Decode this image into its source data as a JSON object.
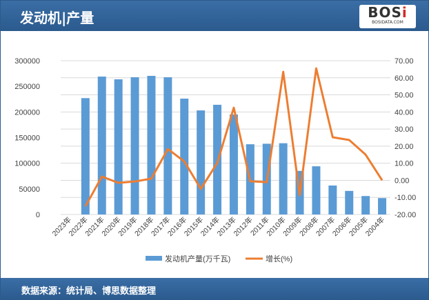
{
  "header": {
    "title": "发动机|产量",
    "logo_text": "BOSi",
    "logo_sub": "BOSIDATA.COM"
  },
  "footer": {
    "source": "数据来源：统计局、博思数据整理"
  },
  "chart_data": {
    "type": "bar+line",
    "categories": [
      "2023年",
      "2022年",
      "2021年",
      "2020年",
      "2019年",
      "2018年",
      "2017年",
      "2016年",
      "2015年",
      "2014年",
      "2013年",
      "2012年",
      "2011年",
      "2010年",
      "2009年",
      "2008年",
      "2007年",
      "2006年",
      "2005年",
      "2004年"
    ],
    "series": [
      {
        "name": "发动机产量(万千瓦)",
        "type": "bar",
        "axis": "left",
        "color": "#5b9bd5",
        "values": [
          null,
          227000,
          269000,
          263700,
          267700,
          270400,
          267700,
          226000,
          203000,
          214000,
          195000,
          137000,
          138000,
          139000,
          85000,
          94000,
          56500,
          46000,
          36000,
          32000
        ]
      },
      {
        "name": "增长(%)",
        "type": "line",
        "axis": "right",
        "color": "#ed7d31",
        "values": [
          null,
          -15.2,
          2.2,
          -1.5,
          -0.7,
          1.0,
          18.3,
          11.0,
          -5.0,
          10.2,
          42.5,
          -0.6,
          -1.1,
          63.5,
          -8.7,
          65.5,
          25.2,
          23.6,
          15.0,
          0.0
        ]
      }
    ],
    "left_axis": {
      "min": 0,
      "max": 300000,
      "ticks": [
        "0",
        "50000",
        "100000",
        "150000",
        "200000",
        "250000",
        "300000"
      ]
    },
    "right_axis": {
      "min": -20,
      "max": 70,
      "ticks": [
        "-20.00",
        "-10.00",
        "0.00",
        "10.00",
        "20.00",
        "30.00",
        "40.00",
        "50.00",
        "60.00",
        "70.00"
      ]
    },
    "grid": true,
    "legend": "bottom"
  }
}
